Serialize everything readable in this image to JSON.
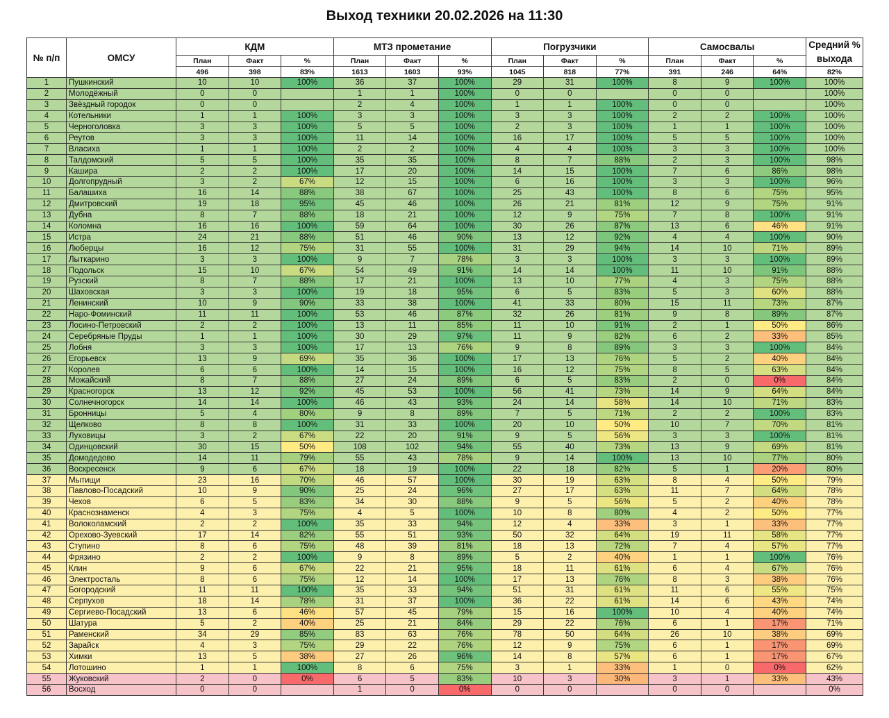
{
  "title": "Выход техники 20.02.2026 на 11:30",
  "header": {
    "num": "№ п/п",
    "omsu": "ОМСУ",
    "groups": [
      "КДМ",
      "МТЗ прометание",
      "Погрузчики",
      "Самосвалы"
    ],
    "avg": "Средний % выхода",
    "sub": [
      "План",
      "Факт",
      "%"
    ]
  },
  "totals": [
    496,
    398,
    "83%",
    1613,
    1603,
    "93%",
    1045,
    818,
    "77%",
    391,
    246,
    "64%",
    "82%"
  ],
  "rows": [
    [
      1,
      "Пушкинский",
      10,
      10,
      "100%",
      36,
      37,
      "100%",
      29,
      31,
      "100%",
      8,
      9,
      "100%",
      "100%"
    ],
    [
      2,
      "Молодёжный",
      0,
      0,
      null,
      1,
      1,
      "100%",
      0,
      0,
      null,
      0,
      0,
      null,
      "100%"
    ],
    [
      3,
      "Звёздный городок",
      0,
      0,
      null,
      2,
      4,
      "100%",
      1,
      1,
      "100%",
      0,
      0,
      null,
      "100%"
    ],
    [
      4,
      "Котельники",
      1,
      1,
      "100%",
      3,
      3,
      "100%",
      3,
      3,
      "100%",
      2,
      2,
      "100%",
      "100%"
    ],
    [
      5,
      "Черноголовка",
      3,
      3,
      "100%",
      5,
      5,
      "100%",
      2,
      3,
      "100%",
      1,
      1,
      "100%",
      "100%"
    ],
    [
      6,
      "Реутов",
      3,
      3,
      "100%",
      11,
      14,
      "100%",
      16,
      17,
      "100%",
      5,
      5,
      "100%",
      "100%"
    ],
    [
      7,
      "Власиха",
      1,
      1,
      "100%",
      2,
      2,
      "100%",
      4,
      4,
      "100%",
      3,
      3,
      "100%",
      "100%"
    ],
    [
      8,
      "Талдомский",
      5,
      5,
      "100%",
      35,
      35,
      "100%",
      8,
      7,
      "88%",
      2,
      3,
      "100%",
      "98%"
    ],
    [
      9,
      "Кашира",
      2,
      2,
      "100%",
      17,
      20,
      "100%",
      14,
      15,
      "100%",
      7,
      6,
      "86%",
      "98%"
    ],
    [
      10,
      "Долгопрудный",
      3,
      2,
      "67%",
      12,
      15,
      "100%",
      6,
      16,
      "100%",
      3,
      3,
      "100%",
      "96%"
    ],
    [
      11,
      "Балашиха",
      16,
      14,
      "88%",
      38,
      67,
      "100%",
      25,
      43,
      "100%",
      8,
      6,
      "75%",
      "95%"
    ],
    [
      12,
      "Дмитровский",
      19,
      18,
      "95%",
      45,
      46,
      "100%",
      26,
      21,
      "81%",
      12,
      9,
      "75%",
      "91%"
    ],
    [
      13,
      "Дубна",
      8,
      7,
      "88%",
      18,
      21,
      "100%",
      12,
      9,
      "75%",
      7,
      8,
      "100%",
      "91%"
    ],
    [
      14,
      "Коломна",
      16,
      16,
      "100%",
      59,
      64,
      "100%",
      30,
      26,
      "87%",
      13,
      6,
      "46%",
      "91%"
    ],
    [
      15,
      "Истра",
      24,
      21,
      "88%",
      51,
      46,
      "90%",
      13,
      12,
      "92%",
      4,
      4,
      "100%",
      "90%"
    ],
    [
      16,
      "Люберцы",
      16,
      12,
      "75%",
      31,
      55,
      "100%",
      31,
      29,
      "94%",
      14,
      10,
      "71%",
      "89%"
    ],
    [
      17,
      "Лыткарино",
      3,
      3,
      "100%",
      9,
      7,
      "78%",
      3,
      3,
      "100%",
      3,
      3,
      "100%",
      "89%"
    ],
    [
      18,
      "Подольск",
      15,
      10,
      "67%",
      54,
      49,
      "91%",
      14,
      14,
      "100%",
      11,
      10,
      "91%",
      "88%"
    ],
    [
      19,
      "Рузский",
      8,
      7,
      "88%",
      17,
      21,
      "100%",
      13,
      10,
      "77%",
      4,
      3,
      "75%",
      "88%"
    ],
    [
      20,
      "Шаховская",
      3,
      3,
      "100%",
      19,
      18,
      "95%",
      6,
      5,
      "83%",
      5,
      3,
      "60%",
      "88%"
    ],
    [
      21,
      "Ленинский",
      10,
      9,
      "90%",
      33,
      38,
      "100%",
      41,
      33,
      "80%",
      15,
      11,
      "73%",
      "87%"
    ],
    [
      22,
      "Наро-Фоминский",
      11,
      11,
      "100%",
      53,
      46,
      "87%",
      32,
      26,
      "81%",
      9,
      8,
      "89%",
      "87%"
    ],
    [
      23,
      "Лосино-Петровский",
      2,
      2,
      "100%",
      13,
      11,
      "85%",
      11,
      10,
      "91%",
      2,
      1,
      "50%",
      "86%"
    ],
    [
      24,
      "Серебряные Пруды",
      1,
      1,
      "100%",
      30,
      29,
      "97%",
      11,
      9,
      "82%",
      6,
      2,
      "33%",
      "85%"
    ],
    [
      25,
      "Лобня",
      3,
      3,
      "100%",
      17,
      13,
      "76%",
      9,
      8,
      "89%",
      3,
      3,
      "100%",
      "84%"
    ],
    [
      26,
      "Егорьевск",
      13,
      9,
      "69%",
      35,
      36,
      "100%",
      17,
      13,
      "76%",
      5,
      2,
      "40%",
      "84%"
    ],
    [
      27,
      "Королев",
      6,
      6,
      "100%",
      14,
      15,
      "100%",
      16,
      12,
      "75%",
      8,
      5,
      "63%",
      "84%"
    ],
    [
      28,
      "Можайский",
      8,
      7,
      "88%",
      27,
      24,
      "89%",
      6,
      5,
      "83%",
      2,
      0,
      "0%",
      "84%"
    ],
    [
      29,
      "Красногорск",
      13,
      12,
      "92%",
      45,
      53,
      "100%",
      56,
      41,
      "73%",
      14,
      9,
      "64%",
      "84%"
    ],
    [
      30,
      "Солнечногорск",
      14,
      14,
      "100%",
      46,
      43,
      "93%",
      24,
      14,
      "58%",
      14,
      10,
      "71%",
      "83%"
    ],
    [
      31,
      "Бронницы",
      5,
      4,
      "80%",
      9,
      8,
      "89%",
      7,
      5,
      "71%",
      2,
      2,
      "100%",
      "83%"
    ],
    [
      32,
      "Щелково",
      8,
      8,
      "100%",
      31,
      33,
      "100%",
      20,
      10,
      "50%",
      10,
      7,
      "70%",
      "81%"
    ],
    [
      33,
      "Луховицы",
      3,
      2,
      "67%",
      22,
      20,
      "91%",
      9,
      5,
      "56%",
      3,
      3,
      "100%",
      "81%"
    ],
    [
      34,
      "Одинцовский",
      30,
      15,
      "50%",
      108,
      102,
      "94%",
      55,
      40,
      "73%",
      13,
      9,
      "69%",
      "81%"
    ],
    [
      35,
      "Домодедово",
      14,
      11,
      "79%",
      55,
      43,
      "78%",
      9,
      14,
      "100%",
      13,
      10,
      "77%",
      "80%"
    ],
    [
      36,
      "Воскресенск",
      9,
      6,
      "67%",
      18,
      19,
      "100%",
      22,
      18,
      "82%",
      5,
      1,
      "20%",
      "80%"
    ],
    [
      37,
      "Мытищи",
      23,
      16,
      "70%",
      46,
      57,
      "100%",
      30,
      19,
      "63%",
      8,
      4,
      "50%",
      "79%"
    ],
    [
      38,
      "Павлово-Посадский",
      10,
      9,
      "90%",
      25,
      24,
      "96%",
      27,
      17,
      "63%",
      11,
      7,
      "64%",
      "78%"
    ],
    [
      39,
      "Чехов",
      6,
      5,
      "83%",
      34,
      30,
      "88%",
      9,
      5,
      "56%",
      5,
      2,
      "40%",
      "78%"
    ],
    [
      40,
      "Краснознаменск",
      4,
      3,
      "75%",
      4,
      5,
      "100%",
      10,
      8,
      "80%",
      4,
      2,
      "50%",
      "77%"
    ],
    [
      41,
      "Волоколамский",
      2,
      2,
      "100%",
      35,
      33,
      "94%",
      12,
      4,
      "33%",
      3,
      1,
      "33%",
      "77%"
    ],
    [
      42,
      "Орехово-Зуевский",
      17,
      14,
      "82%",
      55,
      51,
      "93%",
      50,
      32,
      "64%",
      19,
      11,
      "58%",
      "77%"
    ],
    [
      43,
      "Ступино",
      8,
      6,
      "75%",
      48,
      39,
      "81%",
      18,
      13,
      "72%",
      7,
      4,
      "57%",
      "77%"
    ],
    [
      44,
      "Фрязино",
      2,
      2,
      "100%",
      9,
      8,
      "89%",
      5,
      2,
      "40%",
      1,
      1,
      "100%",
      "76%"
    ],
    [
      45,
      "Клин",
      9,
      6,
      "67%",
      22,
      21,
      "95%",
      18,
      11,
      "61%",
      6,
      4,
      "67%",
      "76%"
    ],
    [
      46,
      "Электросталь",
      8,
      6,
      "75%",
      12,
      14,
      "100%",
      17,
      13,
      "76%",
      8,
      3,
      "38%",
      "76%"
    ],
    [
      47,
      "Богородский",
      11,
      11,
      "100%",
      35,
      33,
      "94%",
      51,
      31,
      "61%",
      11,
      6,
      "55%",
      "75%"
    ],
    [
      48,
      "Серпухов",
      18,
      14,
      "78%",
      31,
      37,
      "100%",
      36,
      22,
      "61%",
      14,
      6,
      "43%",
      "74%"
    ],
    [
      49,
      "Сергиево-Посадский",
      13,
      6,
      "46%",
      57,
      45,
      "79%",
      15,
      16,
      "100%",
      10,
      4,
      "40%",
      "74%"
    ],
    [
      50,
      "Шатура",
      5,
      2,
      "40%",
      25,
      21,
      "84%",
      29,
      22,
      "76%",
      6,
      1,
      "17%",
      "71%"
    ],
    [
      51,
      "Раменский",
      34,
      29,
      "85%",
      83,
      63,
      "76%",
      78,
      50,
      "64%",
      26,
      10,
      "38%",
      "69%"
    ],
    [
      52,
      "Зарайск",
      4,
      3,
      "75%",
      29,
      22,
      "76%",
      12,
      9,
      "75%",
      6,
      1,
      "17%",
      "69%"
    ],
    [
      53,
      "Химки",
      13,
      5,
      "38%",
      27,
      26,
      "96%",
      14,
      8,
      "57%",
      6,
      1,
      "17%",
      "67%"
    ],
    [
      54,
      "Лотошино",
      1,
      1,
      "100%",
      8,
      6,
      "75%",
      3,
      1,
      "33%",
      1,
      0,
      "0%",
      "62%"
    ],
    [
      55,
      "Жуковский",
      2,
      0,
      "0%",
      6,
      5,
      "83%",
      10,
      3,
      "30%",
      3,
      1,
      "33%",
      "43%"
    ],
    [
      56,
      "Восход",
      0,
      0,
      null,
      1,
      0,
      "0%",
      0,
      0,
      null,
      0,
      0,
      null,
      "0%"
    ]
  ]
}
